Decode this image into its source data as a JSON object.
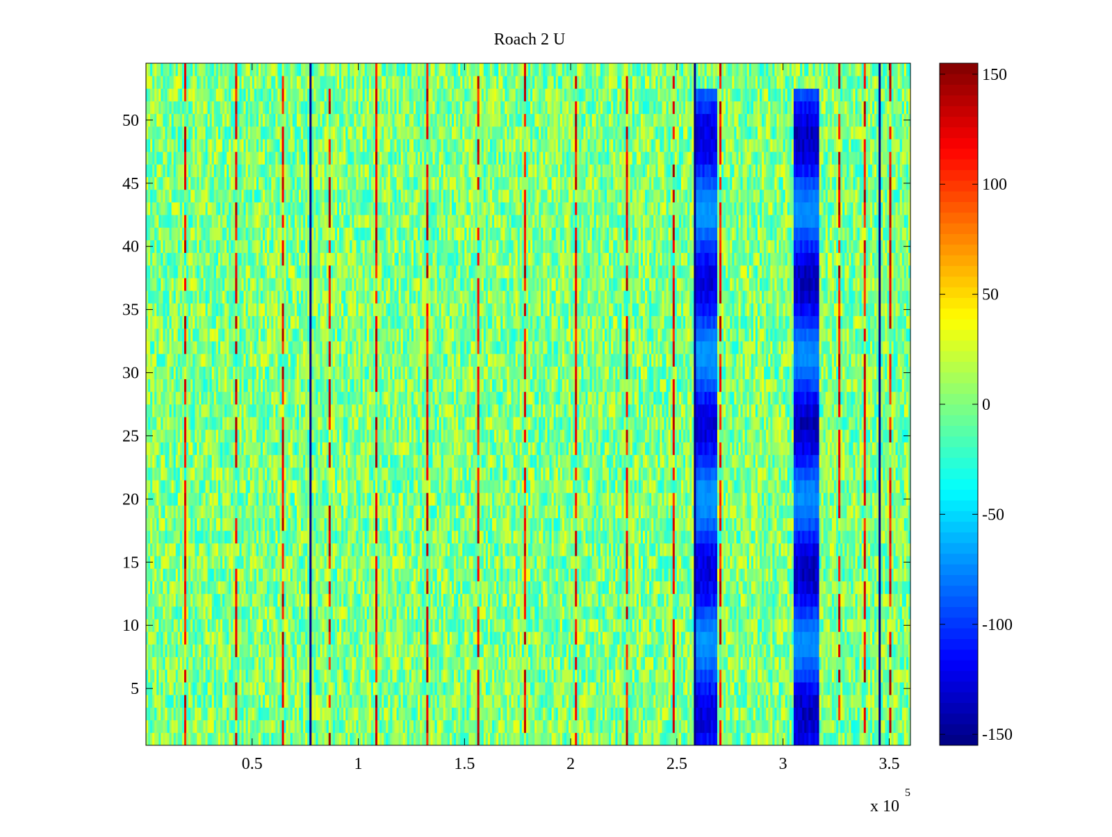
{
  "chart_data": {
    "type": "heatmap",
    "title": "Roach 2 U",
    "xlabel": "",
    "ylabel": "",
    "x_exponent_label": {
      "base": "x 10",
      "exponent": "5"
    },
    "xlim": [
      0,
      360000
    ],
    "ylim": [
      0.5,
      54.5
    ],
    "rows": 54,
    "x_ticks": [
      {
        "value": 50000,
        "label": "0.5"
      },
      {
        "value": 100000,
        "label": "1"
      },
      {
        "value": 150000,
        "label": "1.5"
      },
      {
        "value": 200000,
        "label": "2"
      },
      {
        "value": 250000,
        "label": "2.5"
      },
      {
        "value": 300000,
        "label": "3"
      },
      {
        "value": 350000,
        "label": "3.5"
      }
    ],
    "y_ticks": [
      {
        "value": 5,
        "label": "5"
      },
      {
        "value": 10,
        "label": "10"
      },
      {
        "value": 15,
        "label": "15"
      },
      {
        "value": 20,
        "label": "20"
      },
      {
        "value": 25,
        "label": "25"
      },
      {
        "value": 30,
        "label": "30"
      },
      {
        "value": 35,
        "label": "35"
      },
      {
        "value": 40,
        "label": "40"
      },
      {
        "value": 45,
        "label": "45"
      },
      {
        "value": 50,
        "label": "50"
      }
    ],
    "colormap": "jet",
    "clim": [
      -155,
      155
    ],
    "colorbar_ticks": [
      {
        "value": 150,
        "label": "150"
      },
      {
        "value": 100,
        "label": "100"
      },
      {
        "value": 50,
        "label": "50"
      },
      {
        "value": 0,
        "label": "0"
      },
      {
        "value": -50,
        "label": "-50"
      },
      {
        "value": -100,
        "label": "-100"
      },
      {
        "value": -150,
        "label": "-150"
      }
    ],
    "background_range": [
      -35,
      35
    ],
    "positive_stripes_x": [
      18000,
      42000,
      64000,
      86000,
      108000,
      132000,
      156000,
      178000,
      202000,
      226000,
      248000,
      270000,
      326000,
      338000,
      350000
    ],
    "dark_lines_x": [
      77000,
      258000,
      345000
    ],
    "negative_bands": [
      {
        "x_range": [
          259000,
          268000
        ],
        "y_range": [
          1,
          52
        ],
        "min_value": -140
      },
      {
        "x_range": [
          305000,
          316000
        ],
        "y_range": [
          1,
          52
        ],
        "min_value": -150
      }
    ]
  }
}
